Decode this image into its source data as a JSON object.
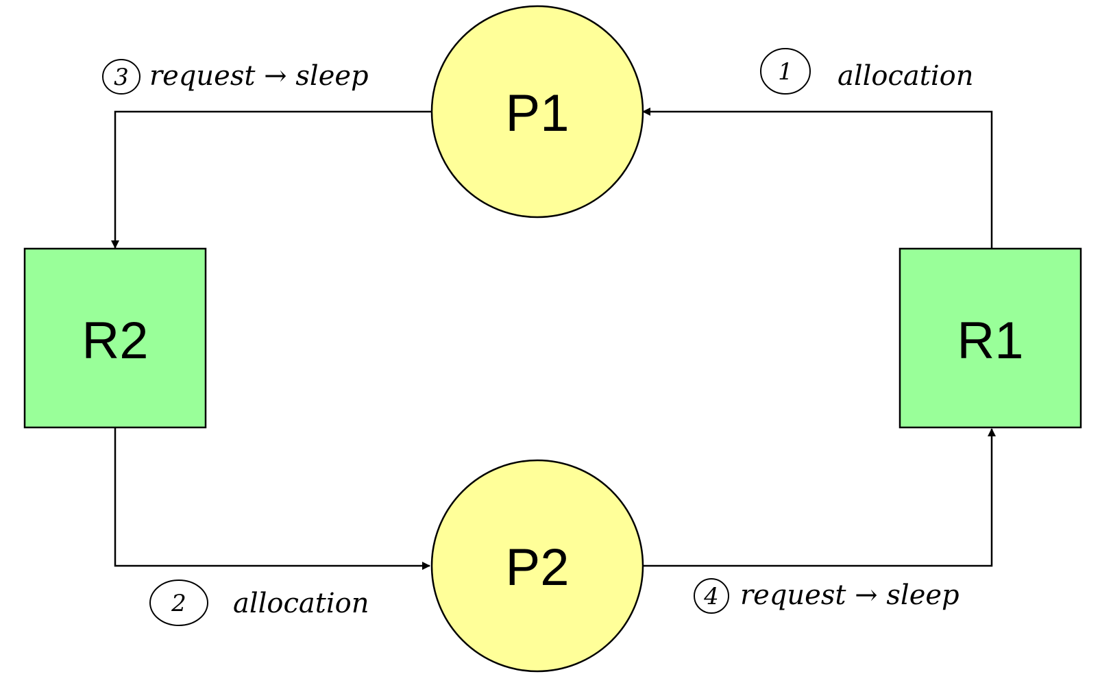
{
  "nodes": {
    "p1": {
      "label": "P1",
      "shape": "circle",
      "fill": "#ffff99"
    },
    "p2": {
      "label": "P2",
      "shape": "circle",
      "fill": "#ffff99"
    },
    "r1": {
      "label": "R1",
      "shape": "square",
      "fill": "#99ff99"
    },
    "r2": {
      "label": "R2",
      "shape": "square",
      "fill": "#99ff99"
    }
  },
  "edges": [
    {
      "from": "r1",
      "to": "p1",
      "number": "1",
      "label": "allocation"
    },
    {
      "from": "r2",
      "to": "p2",
      "number": "2",
      "label": "allocation"
    },
    {
      "from": "p1",
      "to": "r2",
      "number": "3",
      "label": "request → sleep"
    },
    {
      "from": "p2",
      "to": "r1",
      "number": "4",
      "label": "request → sleep"
    }
  ],
  "colors": {
    "stroke": "#000000",
    "process_fill": "#ffff99",
    "resource_fill": "#99ff99"
  }
}
